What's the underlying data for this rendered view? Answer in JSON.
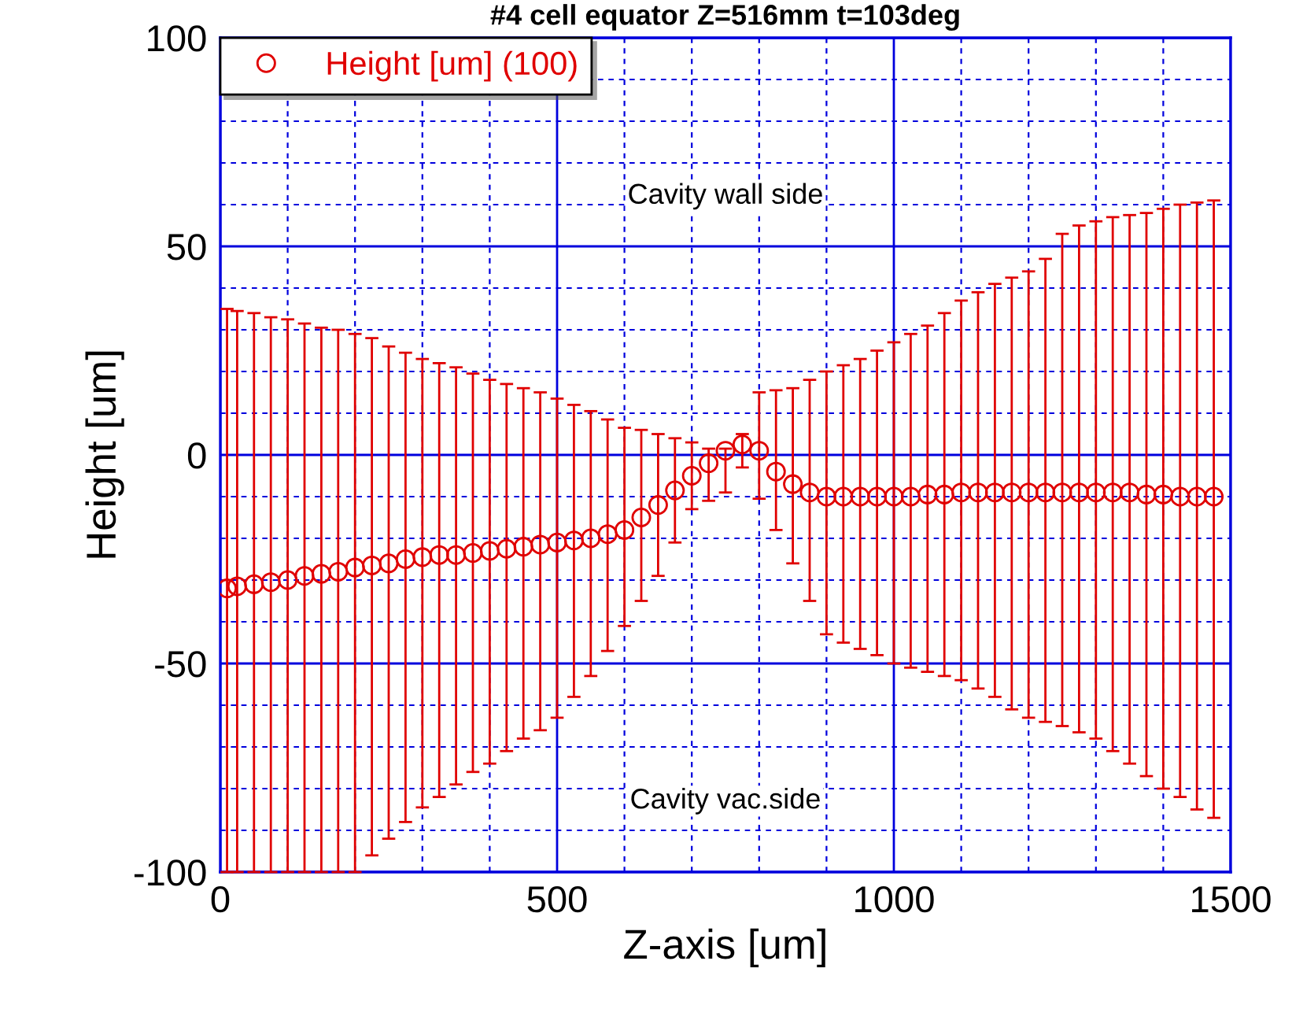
{
  "chart_data": {
    "type": "scatter",
    "title": "#4 cell equator Z=516mm t=103deg",
    "xlabel": "Z-axis [um]",
    "ylabel": "Height [um]",
    "annotations": [
      "Cavity wall side",
      "Cavity vac.side"
    ],
    "xlim": [
      0,
      1500
    ],
    "xticks": [
      0,
      {
        "value": 100,
        "label": null
      },
      {
        "value": 200,
        "label": null
      },
      {
        "value": 300,
        "label": null
      },
      {
        "value": 400,
        "label": null
      },
      500,
      {
        "value": 600,
        "label": null
      },
      {
        "value": 700,
        "label": null
      },
      {
        "value": 800,
        "label": null
      },
      {
        "value": 900,
        "label": null
      },
      1000,
      {
        "value": 1100,
        "label": null
      },
      {
        "value": 1200,
        "label": null
      },
      {
        "value": 1300,
        "label": null
      },
      {
        "value": 1400,
        "label": null
      },
      1500
    ],
    "ylim": [
      -100,
      100
    ],
    "yticks": [
      -100,
      {
        "value": -90,
        "label": null
      },
      {
        "value": -80,
        "label": null
      },
      {
        "value": -70,
        "label": null
      },
      {
        "value": -60,
        "label": null
      },
      -50,
      {
        "value": -40,
        "label": null
      },
      {
        "value": -30,
        "label": null
      },
      {
        "value": -20,
        "label": null
      },
      {
        "value": -10,
        "label": null
      },
      0,
      {
        "value": 10,
        "label": null
      },
      {
        "value": 20,
        "label": null
      },
      {
        "value": 30,
        "label": null
      },
      {
        "value": 40,
        "label": null
      },
      50,
      {
        "value": 60,
        "label": null
      },
      {
        "value": 70,
        "label": null
      },
      {
        "value": 80,
        "label": null
      },
      {
        "value": 90,
        "label": null
      },
      100
    ],
    "grid": true,
    "legend": "top left",
    "marker": "circle",
    "series": [
      {
        "name": "Height [um] (100)",
        "color": "#e00000",
        "x": [
          10,
          25,
          50,
          75,
          100,
          125,
          150,
          175,
          200,
          225,
          250,
          275,
          300,
          325,
          350,
          375,
          400,
          425,
          450,
          475,
          500,
          525,
          550,
          575,
          600,
          625,
          650,
          675,
          700,
          725,
          750,
          775,
          800,
          825,
          850,
          875,
          900,
          925,
          950,
          975,
          1000,
          1025,
          1050,
          1075,
          1100,
          1125,
          1150,
          1175,
          1200,
          1225,
          1250,
          1275,
          1300,
          1325,
          1350,
          1375,
          1400,
          1425,
          1450,
          1475
        ],
        "values": [
          -32,
          -31.5,
          -31,
          -30.5,
          -30,
          -29,
          -28.5,
          -28,
          -27,
          -26.5,
          -26,
          -25,
          -24.5,
          -24,
          -24,
          -23.5,
          -23,
          -22.5,
          -22,
          -21.5,
          -21,
          -20.5,
          -20,
          -19,
          -18,
          -15,
          -12,
          -8.5,
          -5,
          -2,
          1,
          2.5,
          1,
          -4,
          -7,
          -9,
          -10,
          -10,
          -10,
          -10,
          -10,
          -10,
          -9.5,
          -9.5,
          -9,
          -9,
          -9,
          -9,
          -9,
          -9,
          -9,
          -9,
          -9,
          -9,
          -9,
          -9.5,
          -9.5,
          -10,
          -10,
          -10
        ],
        "errors": [
          [
            -100,
            35
          ],
          [
            -100,
            34.5
          ],
          [
            -100,
            34
          ],
          [
            -100,
            33
          ],
          [
            -100,
            32.5
          ],
          [
            -100,
            31.5
          ],
          [
            -100,
            30.5
          ],
          [
            -100,
            30
          ],
          [
            -100,
            29
          ],
          [
            -96,
            28
          ],
          [
            -92,
            26
          ],
          [
            -88,
            24.5
          ],
          [
            -84.5,
            23
          ],
          [
            -82,
            22
          ],
          [
            -79,
            21
          ],
          [
            -76,
            19.5
          ],
          [
            -74,
            18
          ],
          [
            -71,
            17
          ],
          [
            -68,
            16
          ],
          [
            -66,
            15
          ],
          [
            -63,
            13.5
          ],
          [
            -58,
            12
          ],
          [
            -53,
            10.5
          ],
          [
            -47,
            8.5
          ],
          [
            -41,
            6.5
          ],
          [
            -35,
            6
          ],
          [
            -29,
            5
          ],
          [
            -21,
            4
          ],
          [
            -13,
            3
          ],
          [
            -11,
            1.5
          ],
          [
            -9,
            1.5
          ],
          [
            -3,
            5
          ],
          [
            -10.5,
            15
          ],
          [
            -18,
            15.5
          ],
          [
            -26,
            16
          ],
          [
            -35,
            18
          ],
          [
            -43,
            20
          ],
          [
            -45,
            21.5
          ],
          [
            -46.5,
            23
          ],
          [
            -48,
            25
          ],
          [
            -50,
            27
          ],
          [
            -51,
            29
          ],
          [
            -52,
            31
          ],
          [
            -53,
            34
          ],
          [
            -54,
            37
          ],
          [
            -56,
            39
          ],
          [
            -58,
            41
          ],
          [
            -61,
            42.5
          ],
          [
            -63,
            44
          ],
          [
            -64,
            47
          ],
          [
            -65,
            53
          ],
          [
            -66.5,
            55
          ],
          [
            -68,
            56
          ],
          [
            -71,
            57
          ],
          [
            -74,
            57.5
          ],
          [
            -77,
            58
          ],
          [
            -80,
            59
          ],
          [
            -82,
            60
          ],
          [
            -85,
            60.5
          ],
          [
            -87,
            61
          ]
        ]
      }
    ]
  }
}
